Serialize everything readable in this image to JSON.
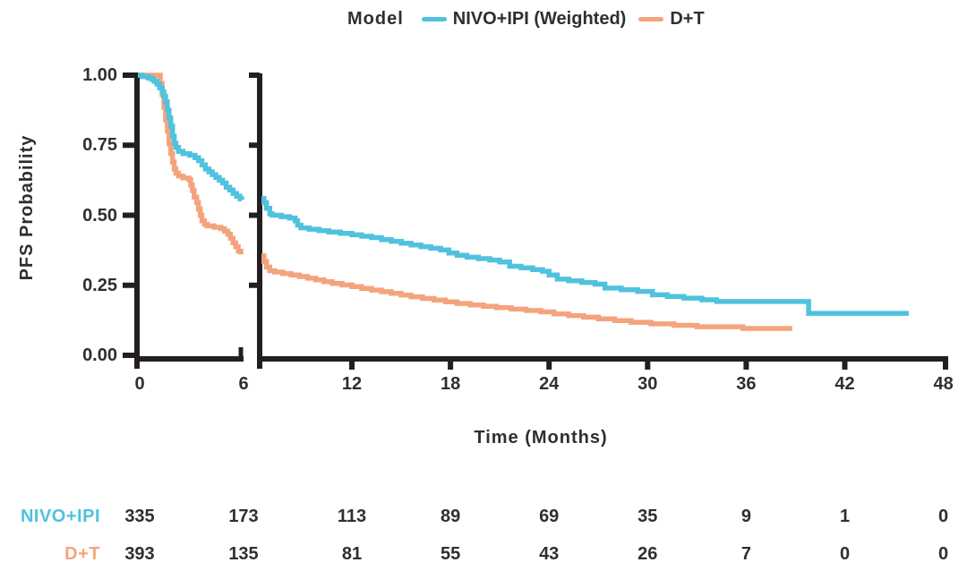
{
  "colors": {
    "nivo": "#50C2DE",
    "dt": "#F4A47C",
    "axis": "#231F20",
    "text": "#2F2F2F"
  },
  "legend": {
    "title": "Model",
    "items": [
      {
        "label": "NIVO+IPI (Weighted)",
        "color_key": "nivo"
      },
      {
        "label": "D+T",
        "color_key": "dt"
      }
    ]
  },
  "y_axis": {
    "label": "PFS Probability",
    "tick_labels": [
      "1.00",
      "0.75",
      "0.50",
      "0.25",
      "0.00"
    ],
    "tick_values": [
      1.0,
      0.75,
      0.5,
      0.25,
      0.0
    ]
  },
  "x_axis": {
    "label": "Time (Months)",
    "tick_labels": [
      "0",
      "6",
      "12",
      "18",
      "24",
      "30",
      "36",
      "42",
      "48"
    ],
    "tick_values": [
      0,
      6,
      12,
      18,
      24,
      30,
      36,
      42,
      48
    ]
  },
  "risk_table": {
    "rows": [
      {
        "label": "NIVO+IPI",
        "color_key": "nivo",
        "counts": [
          "335",
          "173",
          "113",
          "89",
          "69",
          "35",
          "9",
          "1",
          "0"
        ]
      },
      {
        "label": "D+T",
        "color_key": "dt",
        "counts": [
          "393",
          "135",
          "81",
          "55",
          "43",
          "26",
          "7",
          "0",
          "0"
        ]
      }
    ]
  },
  "chart_data": {
    "type": "line",
    "subtype": "kaplan-meier-step",
    "title": "",
    "xlabel": "Time (Months)",
    "ylabel": "PFS Probability",
    "xlim": [
      0,
      48
    ],
    "ylim": [
      0,
      1
    ],
    "grid": false,
    "legend_position": "top",
    "axis_break": {
      "left_panel_range": [
        0,
        6
      ],
      "right_panel_range": [
        6.5,
        48
      ]
    },
    "at_risk_times": [
      0,
      6,
      12,
      18,
      24,
      30,
      36,
      42,
      48
    ],
    "series": [
      {
        "name": "D+T",
        "color_key": "dt",
        "left_panel": [
          [
            0,
            1.0
          ],
          [
            1.2,
            1.0
          ],
          [
            1.3,
            0.97
          ],
          [
            1.4,
            0.93
          ],
          [
            1.5,
            0.885
          ],
          [
            1.6,
            0.84
          ],
          [
            1.7,
            0.8
          ],
          [
            1.8,
            0.755
          ],
          [
            1.9,
            0.72
          ],
          [
            2.0,
            0.69
          ],
          [
            2.1,
            0.665
          ],
          [
            2.2,
            0.65
          ],
          [
            2.35,
            0.64
          ],
          [
            2.6,
            0.633
          ],
          [
            2.95,
            0.627
          ],
          [
            3.05,
            0.608
          ],
          [
            3.15,
            0.588
          ],
          [
            3.25,
            0.565
          ],
          [
            3.4,
            0.545
          ],
          [
            3.5,
            0.522
          ],
          [
            3.6,
            0.5
          ],
          [
            3.7,
            0.48
          ],
          [
            3.85,
            0.468
          ],
          [
            4.0,
            0.462
          ],
          [
            4.4,
            0.457
          ],
          [
            4.8,
            0.452
          ],
          [
            5.0,
            0.443
          ],
          [
            5.2,
            0.432
          ],
          [
            5.35,
            0.418
          ],
          [
            5.5,
            0.402
          ],
          [
            5.65,
            0.388
          ],
          [
            5.8,
            0.372
          ],
          [
            5.95,
            0.36
          ]
        ],
        "right_panel": [
          [
            6.5,
            0.355
          ],
          [
            6.65,
            0.335
          ],
          [
            6.8,
            0.315
          ],
          [
            7.0,
            0.302
          ],
          [
            7.3,
            0.297
          ],
          [
            7.8,
            0.292
          ],
          [
            8.3,
            0.287
          ],
          [
            8.8,
            0.281
          ],
          [
            9.3,
            0.275
          ],
          [
            9.8,
            0.269
          ],
          [
            10.3,
            0.263
          ],
          [
            10.8,
            0.257
          ],
          [
            11.4,
            0.251
          ],
          [
            12.0,
            0.245
          ],
          [
            12.6,
            0.239
          ],
          [
            13.2,
            0.233
          ],
          [
            13.8,
            0.227
          ],
          [
            14.4,
            0.221
          ],
          [
            15.0,
            0.215
          ],
          [
            15.6,
            0.209
          ],
          [
            16.3,
            0.203
          ],
          [
            17.0,
            0.197
          ],
          [
            17.7,
            0.191
          ],
          [
            18.4,
            0.185
          ],
          [
            19.2,
            0.18
          ],
          [
            20.0,
            0.175
          ],
          [
            20.8,
            0.17
          ],
          [
            21.7,
            0.165
          ],
          [
            22.6,
            0.16
          ],
          [
            23.5,
            0.155
          ],
          [
            24.3,
            0.148
          ],
          [
            25.2,
            0.142
          ],
          [
            26.1,
            0.136
          ],
          [
            27.0,
            0.13
          ],
          [
            28.0,
            0.124
          ],
          [
            29.0,
            0.118
          ],
          [
            30.2,
            0.112
          ],
          [
            31.6,
            0.107
          ],
          [
            33.0,
            0.102
          ],
          [
            35.8,
            0.096
          ],
          [
            38.8,
            0.096
          ]
        ]
      },
      {
        "name": "NIVO+IPI (Weighted)",
        "color_key": "nivo",
        "left_panel": [
          [
            0,
            1.0
          ],
          [
            0.25,
            0.995
          ],
          [
            0.6,
            0.99
          ],
          [
            0.8,
            0.985
          ],
          [
            0.95,
            0.978
          ],
          [
            1.1,
            0.968
          ],
          [
            1.25,
            0.955
          ],
          [
            1.4,
            0.94
          ],
          [
            1.5,
            0.925
          ],
          [
            1.6,
            0.905
          ],
          [
            1.7,
            0.875
          ],
          [
            1.8,
            0.848
          ],
          [
            1.9,
            0.818
          ],
          [
            2.0,
            0.782
          ],
          [
            2.1,
            0.757
          ],
          [
            2.2,
            0.742
          ],
          [
            2.35,
            0.728
          ],
          [
            2.6,
            0.72
          ],
          [
            3.0,
            0.714
          ],
          [
            3.3,
            0.705
          ],
          [
            3.5,
            0.695
          ],
          [
            3.7,
            0.68
          ],
          [
            3.9,
            0.665
          ],
          [
            4.1,
            0.655
          ],
          [
            4.3,
            0.645
          ],
          [
            4.5,
            0.635
          ],
          [
            4.7,
            0.625
          ],
          [
            4.9,
            0.615
          ],
          [
            5.1,
            0.6
          ],
          [
            5.3,
            0.59
          ],
          [
            5.5,
            0.578
          ],
          [
            5.7,
            0.568
          ],
          [
            5.9,
            0.558
          ],
          [
            6.0,
            0.555
          ]
        ],
        "right_panel": [
          [
            6.5,
            0.56
          ],
          [
            6.65,
            0.545
          ],
          [
            6.8,
            0.525
          ],
          [
            7.0,
            0.505
          ],
          [
            7.15,
            0.5
          ],
          [
            7.7,
            0.495
          ],
          [
            8.2,
            0.49
          ],
          [
            8.55,
            0.48
          ],
          [
            8.7,
            0.465
          ],
          [
            8.9,
            0.455
          ],
          [
            9.4,
            0.45
          ],
          [
            10.0,
            0.445
          ],
          [
            10.6,
            0.44
          ],
          [
            11.3,
            0.435
          ],
          [
            12.0,
            0.43
          ],
          [
            12.6,
            0.425
          ],
          [
            13.2,
            0.42
          ],
          [
            13.8,
            0.413
          ],
          [
            14.4,
            0.407
          ],
          [
            15.0,
            0.4
          ],
          [
            15.6,
            0.394
          ],
          [
            16.2,
            0.388
          ],
          [
            16.8,
            0.382
          ],
          [
            17.4,
            0.376
          ],
          [
            17.9,
            0.365
          ],
          [
            18.4,
            0.357
          ],
          [
            19.0,
            0.35
          ],
          [
            19.7,
            0.345
          ],
          [
            20.4,
            0.34
          ],
          [
            21.0,
            0.333
          ],
          [
            21.6,
            0.318
          ],
          [
            22.3,
            0.312
          ],
          [
            23.0,
            0.306
          ],
          [
            23.6,
            0.3
          ],
          [
            24.0,
            0.287
          ],
          [
            24.5,
            0.272
          ],
          [
            25.2,
            0.266
          ],
          [
            26.0,
            0.26
          ],
          [
            26.8,
            0.254
          ],
          [
            27.4,
            0.24
          ],
          [
            28.4,
            0.234
          ],
          [
            29.4,
            0.228
          ],
          [
            30.3,
            0.216
          ],
          [
            31.2,
            0.21
          ],
          [
            32.2,
            0.204
          ],
          [
            33.3,
            0.198
          ],
          [
            34.2,
            0.192
          ],
          [
            39.8,
            0.15
          ],
          [
            45.9,
            0.15
          ]
        ]
      }
    ]
  }
}
